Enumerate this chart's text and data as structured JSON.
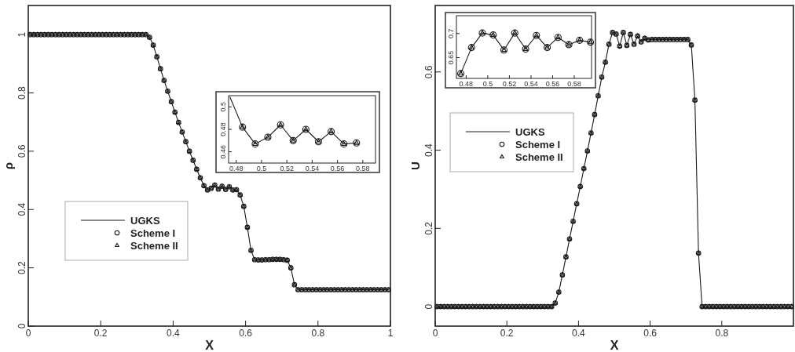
{
  "chart_data": [
    {
      "type": "line",
      "xlabel": "X",
      "ylabel": "ρ",
      "xlim": [
        0,
        1
      ],
      "ylim": [
        0,
        1.1
      ],
      "xticks": [
        0,
        0.2,
        0.4,
        0.6,
        0.8,
        1
      ],
      "yticks": [
        0,
        0.2,
        0.4,
        0.6,
        0.8,
        1
      ],
      "legend": "left",
      "grid": false,
      "x": [
        0.005,
        0.015,
        0.025,
        0.035,
        0.045,
        0.055,
        0.065,
        0.075,
        0.085,
        0.095,
        0.105,
        0.115,
        0.125,
        0.135,
        0.145,
        0.155,
        0.165,
        0.175,
        0.185,
        0.195,
        0.205,
        0.215,
        0.225,
        0.235,
        0.245,
        0.255,
        0.265,
        0.275,
        0.285,
        0.295,
        0.305,
        0.315,
        0.325,
        0.335,
        0.345,
        0.355,
        0.365,
        0.375,
        0.385,
        0.395,
        0.405,
        0.415,
        0.425,
        0.435,
        0.445,
        0.455,
        0.465,
        0.475,
        0.485,
        0.495,
        0.505,
        0.515,
        0.525,
        0.535,
        0.545,
        0.555,
        0.565,
        0.575,
        0.585,
        0.595,
        0.605,
        0.615,
        0.625,
        0.635,
        0.645,
        0.655,
        0.665,
        0.675,
        0.685,
        0.695,
        0.705,
        0.715,
        0.725,
        0.735,
        0.745,
        0.755,
        0.765,
        0.775,
        0.785,
        0.795,
        0.805,
        0.815,
        0.825,
        0.835,
        0.845,
        0.855,
        0.865,
        0.875,
        0.885,
        0.895,
        0.905,
        0.915,
        0.925,
        0.935,
        0.945,
        0.955,
        0.965,
        0.975,
        0.985,
        0.995
      ],
      "series": [
        {
          "name": "UGKS",
          "type": "line",
          "marker": "none",
          "color": "#1a1a1a",
          "values": [
            1,
            1,
            1,
            1,
            1,
            1,
            1,
            1,
            1,
            1,
            1,
            1,
            1,
            1,
            1,
            1,
            1,
            1,
            1,
            1,
            1,
            1,
            1,
            1,
            1,
            1,
            1,
            1,
            1,
            1,
            1,
            1,
            1,
            0.991,
            0.964,
            0.924,
            0.883,
            0.843,
            0.806,
            0.77,
            0.734,
            0.699,
            0.666,
            0.633,
            0.6,
            0.569,
            0.538,
            0.509,
            0.482,
            0.467,
            0.473,
            0.484,
            0.47,
            0.48,
            0.469,
            0.478,
            0.467,
            0.468,
            0.45,
            0.411,
            0.339,
            0.26,
            0.228,
            0.227,
            0.227,
            0.228,
            0.228,
            0.229,
            0.229,
            0.229,
            0.228,
            0.226,
            0.2,
            0.142,
            0.125,
            0.125,
            0.125,
            0.125,
            0.125,
            0.125,
            0.125,
            0.125,
            0.125,
            0.125,
            0.125,
            0.125,
            0.125,
            0.125,
            0.125,
            0.125,
            0.125,
            0.125,
            0.125,
            0.125,
            0.125,
            0.125,
            0.125,
            0.125,
            0.125,
            0.125
          ]
        },
        {
          "name": "Scheme I",
          "type": "scatter",
          "marker": "circle",
          "color": "#1a1a1a",
          "values": [
            1,
            1,
            1,
            1,
            1,
            1,
            1,
            1,
            1,
            1,
            1,
            1,
            1,
            1,
            1,
            1,
            1,
            1,
            1,
            1,
            1,
            1,
            1,
            1,
            1,
            1,
            1,
            1,
            1,
            1,
            1,
            1,
            1,
            0.991,
            0.964,
            0.924,
            0.883,
            0.843,
            0.806,
            0.77,
            0.734,
            0.699,
            0.666,
            0.633,
            0.6,
            0.569,
            0.538,
            0.509,
            0.482,
            0.467,
            0.473,
            0.484,
            0.47,
            0.48,
            0.469,
            0.478,
            0.467,
            0.468,
            0.45,
            0.411,
            0.339,
            0.26,
            0.228,
            0.227,
            0.227,
            0.228,
            0.228,
            0.229,
            0.229,
            0.229,
            0.228,
            0.226,
            0.2,
            0.142,
            0.125,
            0.125,
            0.125,
            0.125,
            0.125,
            0.125,
            0.125,
            0.125,
            0.125,
            0.125,
            0.125,
            0.125,
            0.125,
            0.125,
            0.125,
            0.125,
            0.125,
            0.125,
            0.125,
            0.125,
            0.125,
            0.125,
            0.125,
            0.125,
            0.125,
            0.125
          ]
        },
        {
          "name": "Scheme II",
          "type": "scatter",
          "marker": "triangle",
          "color": "#1a1a1a",
          "values": [
            1,
            1,
            1,
            1,
            1,
            1,
            1,
            1,
            1,
            1,
            1,
            1,
            1,
            1,
            1,
            1,
            1,
            1,
            1,
            1,
            1,
            1,
            1,
            1,
            1,
            1,
            1,
            1,
            1,
            1,
            1,
            1,
            1,
            0.991,
            0.964,
            0.924,
            0.883,
            0.843,
            0.806,
            0.77,
            0.734,
            0.699,
            0.666,
            0.633,
            0.6,
            0.569,
            0.538,
            0.509,
            0.482,
            0.467,
            0.473,
            0.484,
            0.47,
            0.48,
            0.469,
            0.478,
            0.467,
            0.468,
            0.45,
            0.411,
            0.339,
            0.26,
            0.228,
            0.227,
            0.227,
            0.228,
            0.228,
            0.229,
            0.229,
            0.229,
            0.228,
            0.226,
            0.2,
            0.142,
            0.125,
            0.125,
            0.125,
            0.125,
            0.125,
            0.125,
            0.125,
            0.125,
            0.125,
            0.125,
            0.125,
            0.125,
            0.125,
            0.125,
            0.125,
            0.125,
            0.125,
            0.125,
            0.125,
            0.125,
            0.125,
            0.125,
            0.125,
            0.125,
            0.125,
            0.125
          ]
        }
      ]
    },
    {
      "type": "line",
      "xlim": [
        0.474,
        0.59
      ],
      "ylim": [
        0.45,
        0.51
      ],
      "xticks": [
        0.48,
        0.5,
        0.52,
        0.54,
        0.56,
        0.58
      ],
      "yticks": [
        0.46,
        0.48,
        0.5
      ],
      "grid": false,
      "x": [
        0.475,
        0.485,
        0.495,
        0.505,
        0.515,
        0.525,
        0.535,
        0.545,
        0.555,
        0.565,
        0.575
      ],
      "series": [
        {
          "type": "line",
          "marker": "none",
          "color": "#1a1a1a",
          "values": [
            0.509,
            0.482,
            0.467,
            0.473,
            0.484,
            0.47,
            0.48,
            0.469,
            0.478,
            0.467,
            0.468
          ]
        },
        {
          "type": "scatter",
          "marker": "circle",
          "color": "#1a1a1a",
          "values": [
            null,
            0.482,
            0.467,
            0.473,
            0.484,
            0.47,
            0.48,
            0.469,
            0.478,
            0.467,
            0.468
          ]
        },
        {
          "type": "scatter",
          "marker": "triangle",
          "color": "#1a1a1a",
          "values": [
            null,
            0.482,
            0.467,
            0.473,
            0.484,
            0.47,
            0.48,
            0.469,
            0.478,
            0.467,
            0.468
          ]
        }
      ]
    },
    {
      "type": "line",
      "xlabel": "X",
      "ylabel": "U",
      "xlim": [
        0,
        1
      ],
      "ylim": [
        -0.05,
        0.77
      ],
      "xticks": [
        0,
        0.2,
        0.4,
        0.6,
        0.8
      ],
      "yticks": [
        0,
        0.2,
        0.4,
        0.6
      ],
      "legend": "left",
      "grid": false,
      "x": [
        0.005,
        0.015,
        0.025,
        0.035,
        0.045,
        0.055,
        0.065,
        0.075,
        0.085,
        0.095,
        0.105,
        0.115,
        0.125,
        0.135,
        0.145,
        0.155,
        0.165,
        0.175,
        0.185,
        0.195,
        0.205,
        0.215,
        0.225,
        0.235,
        0.245,
        0.255,
        0.265,
        0.275,
        0.285,
        0.295,
        0.305,
        0.315,
        0.325,
        0.335,
        0.345,
        0.355,
        0.365,
        0.375,
        0.385,
        0.395,
        0.405,
        0.415,
        0.425,
        0.435,
        0.445,
        0.455,
        0.465,
        0.475,
        0.485,
        0.495,
        0.505,
        0.515,
        0.525,
        0.535,
        0.545,
        0.555,
        0.565,
        0.575,
        0.585,
        0.595,
        0.605,
        0.615,
        0.625,
        0.635,
        0.645,
        0.655,
        0.665,
        0.675,
        0.685,
        0.695,
        0.705,
        0.715,
        0.725,
        0.735,
        0.745,
        0.755,
        0.765,
        0.775,
        0.785,
        0.795,
        0.805,
        0.815,
        0.825,
        0.835,
        0.845,
        0.855,
        0.865,
        0.875,
        0.885,
        0.895,
        0.905,
        0.915,
        0.925,
        0.935,
        0.945,
        0.955,
        0.965,
        0.975,
        0.985,
        0.995
      ],
      "series": [
        {
          "name": "UGKS",
          "type": "line",
          "marker": "none",
          "color": "#1a1a1a",
          "values": [
            0,
            0,
            0,
            0,
            0,
            0,
            0,
            0,
            0,
            0,
            0,
            0,
            0,
            0,
            0,
            0,
            0,
            0,
            0,
            0,
            0,
            0,
            0,
            0,
            0,
            0,
            0,
            0,
            0,
            0,
            0,
            0,
            0,
            0.009,
            0.037,
            0.081,
            0.127,
            0.173,
            0.218,
            0.263,
            0.307,
            0.353,
            0.398,
            0.444,
            0.491,
            0.539,
            0.587,
            0.625,
            0.671,
            0.701,
            0.697,
            0.666,
            0.701,
            0.668,
            0.696,
            0.671,
            0.692,
            0.677,
            0.686,
            0.682,
            0.683,
            0.683,
            0.683,
            0.683,
            0.683,
            0.683,
            0.683,
            0.683,
            0.683,
            0.683,
            0.683,
            0.669,
            0.528,
            0.137,
            0,
            0,
            0,
            0,
            0,
            0,
            0,
            0,
            0,
            0,
            0,
            0,
            0,
            0,
            0,
            0,
            0,
            0,
            0,
            0,
            0,
            0,
            0,
            0,
            0,
            0
          ]
        },
        {
          "name": "Scheme I",
          "type": "scatter",
          "marker": "circle",
          "color": "#1a1a1a",
          "values": [
            0,
            0,
            0,
            0,
            0,
            0,
            0,
            0,
            0,
            0,
            0,
            0,
            0,
            0,
            0,
            0,
            0,
            0,
            0,
            0,
            0,
            0,
            0,
            0,
            0,
            0,
            0,
            0,
            0,
            0,
            0,
            0,
            0,
            0.009,
            0.037,
            0.081,
            0.127,
            0.173,
            0.218,
            0.263,
            0.307,
            0.353,
            0.398,
            0.444,
            0.491,
            0.539,
            0.587,
            0.625,
            0.671,
            0.701,
            0.697,
            0.666,
            0.701,
            0.668,
            0.696,
            0.671,
            0.692,
            0.677,
            0.686,
            0.682,
            0.683,
            0.683,
            0.683,
            0.683,
            0.683,
            0.683,
            0.683,
            0.683,
            0.683,
            0.683,
            0.683,
            0.669,
            0.528,
            0.137,
            0,
            0,
            0,
            0,
            0,
            0,
            0,
            0,
            0,
            0,
            0,
            0,
            0,
            0,
            0,
            0,
            0,
            0,
            0,
            0,
            0,
            0,
            0,
            0,
            0,
            0
          ]
        },
        {
          "name": "Scheme II",
          "type": "scatter",
          "marker": "triangle",
          "color": "#1a1a1a",
          "values": [
            0,
            0,
            0,
            0,
            0,
            0,
            0,
            0,
            0,
            0,
            0,
            0,
            0,
            0,
            0,
            0,
            0,
            0,
            0,
            0,
            0,
            0,
            0,
            0,
            0,
            0,
            0,
            0,
            0,
            0,
            0,
            0,
            0,
            0.009,
            0.037,
            0.081,
            0.127,
            0.173,
            0.218,
            0.263,
            0.307,
            0.353,
            0.398,
            0.444,
            0.491,
            0.539,
            0.587,
            0.625,
            0.671,
            0.701,
            0.697,
            0.666,
            0.701,
            0.668,
            0.696,
            0.671,
            0.692,
            0.677,
            0.686,
            0.682,
            0.683,
            0.683,
            0.683,
            0.683,
            0.683,
            0.683,
            0.683,
            0.683,
            0.683,
            0.683,
            0.683,
            0.669,
            0.528,
            0.137,
            0,
            0,
            0,
            0,
            0,
            0,
            0,
            0,
            0,
            0,
            0,
            0,
            0,
            0,
            0,
            0,
            0,
            0,
            0,
            0,
            0,
            0,
            0,
            0,
            0,
            0
          ]
        }
      ]
    },
    {
      "type": "line",
      "xlim": [
        0.471,
        0.596
      ],
      "ylim": [
        0.607,
        0.737
      ],
      "xticks": [
        0.48,
        0.5,
        0.52,
        0.54,
        0.56,
        0.58
      ],
      "yticks": [
        0.65,
        0.7
      ],
      "grid": false,
      "x": [
        0.475,
        0.485,
        0.495,
        0.505,
        0.515,
        0.525,
        0.535,
        0.545,
        0.555,
        0.565,
        0.575,
        0.585,
        0.595
      ],
      "series": [
        {
          "type": "line",
          "marker": "none",
          "color": "#1a1a1a",
          "values": [
            0.617,
            0.671,
            0.701,
            0.697,
            0.666,
            0.701,
            0.668,
            0.696,
            0.671,
            0.692,
            0.677,
            0.686,
            0.682
          ]
        },
        {
          "type": "scatter",
          "marker": "circle",
          "color": "#1a1a1a",
          "values": [
            0.617,
            0.671,
            0.701,
            0.697,
            0.666,
            0.701,
            0.668,
            0.696,
            0.671,
            0.692,
            0.677,
            0.686,
            0.682
          ]
        },
        {
          "type": "scatter",
          "marker": "triangle",
          "color": "#1a1a1a",
          "values": [
            0.617,
            0.671,
            0.701,
            0.697,
            0.666,
            0.701,
            0.668,
            0.696,
            0.671,
            0.692,
            0.677,
            0.686,
            0.682
          ]
        }
      ]
    }
  ]
}
